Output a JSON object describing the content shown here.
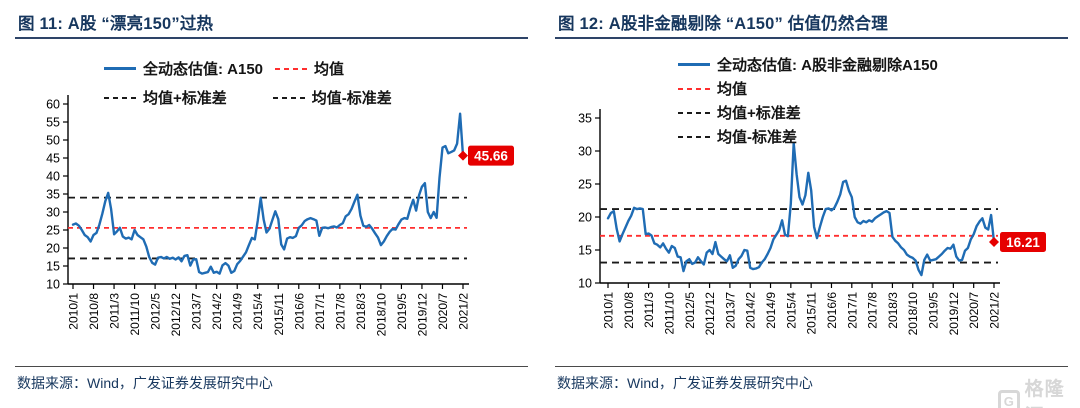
{
  "watermark": {
    "logo": "G",
    "text": "格隆汇"
  },
  "figures": [
    {
      "title": "图 11: A股 “漂亮150”过热",
      "source": "数据来源：Wind，广发证券发展研究中心",
      "chart_data": {
        "type": "line",
        "title": "A股“漂亮150”过热",
        "xlabel": "",
        "ylabel": "",
        "ylim": [
          10,
          60
        ],
        "ytick_step": 5,
        "grid": false,
        "legend_position": "top",
        "x_monthly_range": [
          "2010/1",
          "2021/2"
        ],
        "x_tick_interval_months": 7,
        "x_tick_labels": [
          "2010/1",
          "2010/8",
          "2011/3",
          "2011/10",
          "2012/5",
          "2012/12",
          "2013/7",
          "2014/2",
          "2014/9",
          "2015/4",
          "2015/11",
          "2016/6",
          "2017/1",
          "2017/8",
          "2018/3",
          "2018/10",
          "2019/5",
          "2019/12",
          "2020/7",
          "2021/2"
        ],
        "series": [
          {
            "name": "全动态估值: A150",
            "type": "line",
            "color": "#1f6cb4",
            "values": [
              26.5,
              26.8,
              26.2,
              25.0,
              23.6,
              23.0,
              21.8,
              23.6,
              24.2,
              26.5,
              29.5,
              33.0,
              35.3,
              30.8,
              23.8,
              24.6,
              25.6,
              23.2,
              22.6,
              22.9,
              22.4,
              25.0,
              23.6,
              23.0,
              22.4,
              20.4,
              17.5,
              15.9,
              15.4,
              17.3,
              17.5,
              17.1,
              17.5,
              17.0,
              17.3,
              16.8,
              17.4,
              16.3,
              17.8,
              18.0,
              15.1,
              16.8,
              16.9,
              13.3,
              12.9,
              13.1,
              13.3,
              14.8,
              13.1,
              13.4,
              12.9,
              15.2,
              15.8,
              15.1,
              13.1,
              13.6,
              15.5,
              16.4,
              17.6,
              18.8,
              20.8,
              22.8,
              22.4,
              27.5,
              33.9,
              28.0,
              24.3,
              25.4,
              27.8,
              30.2,
              28.0,
              21.0,
              19.6,
              22.6,
              23.0,
              22.8,
              23.3,
              25.6,
              26.3,
              27.5,
              28.0,
              28.3,
              28.0,
              27.6,
              23.4,
              25.6,
              25.7,
              25.5,
              25.8,
              26.0,
              25.7,
              26.4,
              26.9,
              28.8,
              29.4,
              30.9,
              32.9,
              34.8,
              29.0,
              26.2,
              25.9,
              26.4,
              25.4,
              24.1,
              22.9,
              20.8,
              21.8,
              23.3,
              24.5,
              25.3,
              25.1,
              26.6,
              27.9,
              28.3,
              28.1,
              31.0,
              33.4,
              30.4,
              34.6,
              37.0,
              38.0,
              30.0,
              28.3,
              30.0,
              28.4,
              39.5,
              47.9,
              48.3,
              46.3,
              46.7,
              47.1,
              49.0,
              57.3,
              45.66
            ]
          },
          {
            "name": "均值",
            "type": "hline",
            "style": "dashed",
            "color": "#ff2e2e",
            "dash": "5 4",
            "value": 25.6
          },
          {
            "name": "均值+标准差",
            "type": "hline",
            "style": "dashed",
            "color": "#1a1a1a",
            "dash": "7 5",
            "value": 34.0
          },
          {
            "name": "均值-标准差",
            "type": "hline",
            "style": "dashed",
            "color": "#1a1a1a",
            "dash": "7 5",
            "value": 17.1
          }
        ],
        "last_point_label": {
          "text": "45.66",
          "color": "#e60000",
          "marker": "diamond"
        }
      }
    },
    {
      "title": "图 12: A股非金融剔除 “A150” 估值仍然合理",
      "source": "数据来源：Wind，广发证券发展研究中心",
      "chart_data": {
        "type": "line",
        "title": "A股非金融剔除“A150”估值仍然合理",
        "xlabel": "",
        "ylabel": "",
        "ylim": [
          10,
          35
        ],
        "ytick_step": 5,
        "grid": false,
        "legend_position": "top",
        "x_monthly_range": [
          "2010/1",
          "2021/2"
        ],
        "x_tick_interval_months": 7,
        "x_tick_labels": [
          "2010/1",
          "2010/8",
          "2011/3",
          "2011/10",
          "2012/5",
          "2012/12",
          "2013/7",
          "2014/2",
          "2014/9",
          "2015/4",
          "2015/11",
          "2016/6",
          "2017/1",
          "2017/8",
          "2018/3",
          "2018/10",
          "2019/5",
          "2019/12",
          "2020/7",
          "2021/2"
        ],
        "series": [
          {
            "name": "全动态估值: A股非金融剔除A150",
            "type": "line",
            "color": "#1f6cb4",
            "values": [
              19.8,
              20.6,
              20.9,
              18.2,
              16.3,
              17.4,
              18.4,
              19.4,
              20.2,
              21.4,
              21.2,
              21.3,
              21.2,
              17.4,
              17.5,
              17.2,
              16.0,
              15.8,
              15.4,
              16.0,
              15.2,
              14.6,
              15.6,
              15.3,
              14.0,
              13.9,
              11.8,
              13.3,
              13.6,
              12.9,
              13.1,
              13.9,
              13.3,
              12.8,
              14.6,
              15.0,
              14.4,
              16.2,
              14.4,
              14.0,
              13.6,
              13.3,
              14.2,
              12.3,
              12.6,
              13.6,
              14.1,
              15.0,
              14.9,
              12.3,
              12.1,
              12.2,
              12.4,
              13.1,
              13.6,
              14.4,
              15.3,
              16.6,
              17.3,
              18.0,
              19.5,
              17.3,
              17.1,
              22.0,
              31.2,
              26.5,
              23.0,
              21.9,
              23.3,
              26.7,
              24.0,
              18.5,
              16.8,
              18.5,
              20.0,
              21.2,
              21.3,
              21.0,
              21.4,
              22.3,
              23.4,
              25.3,
              25.5,
              24.0,
              23.0,
              20.0,
              19.2,
              19.0,
              19.4,
              19.2,
              19.5,
              19.3,
              19.8,
              20.1,
              20.4,
              20.7,
              20.9,
              20.6,
              17.0,
              16.4,
              16.0,
              15.4,
              15.0,
              14.3,
              14.0,
              13.8,
              13.4,
              12.0,
              11.2,
              13.5,
              14.3,
              13.4,
              13.5,
              13.6,
              14.0,
              14.4,
              14.9,
              15.3,
              15.2,
              15.8,
              14.0,
              13.4,
              13.5,
              14.9,
              15.3,
              16.6,
              17.4,
              18.6,
              19.3,
              19.8,
              18.4,
              18.1,
              20.3,
              16.21
            ]
          },
          {
            "name": "均值",
            "type": "hline",
            "style": "dashed",
            "color": "#ff2e2e",
            "dash": "5 4",
            "value": 17.15
          },
          {
            "name": "均值+标准差",
            "type": "hline",
            "style": "dashed",
            "color": "#1a1a1a",
            "dash": "7 5",
            "value": 21.2
          },
          {
            "name": "均值-标准差",
            "type": "hline",
            "style": "dashed",
            "color": "#1a1a1a",
            "dash": "7 5",
            "value": 13.1
          }
        ],
        "last_point_label": {
          "text": "16.21",
          "color": "#e60000",
          "marker": "diamond"
        }
      }
    }
  ]
}
